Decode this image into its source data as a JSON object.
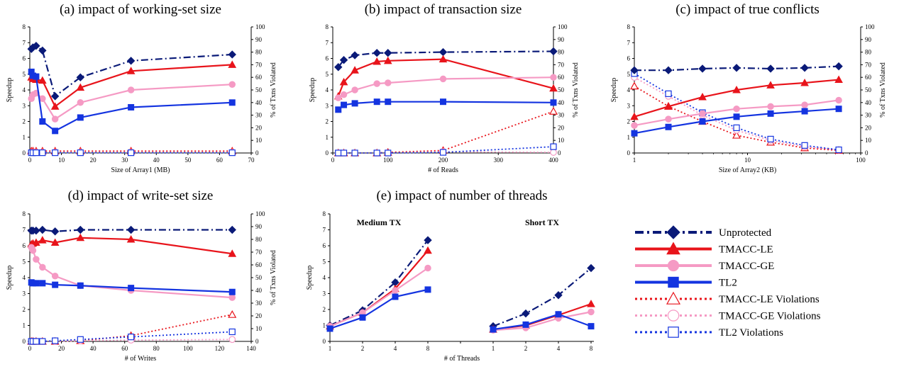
{
  "series_styles": {
    "Unprotected": {
      "color": "#0a1a78",
      "dash": "10,4,2,4",
      "marker": "diamond",
      "fill": true
    },
    "TMACC-LE": {
      "color": "#e8141b",
      "dash": "",
      "marker": "triangle",
      "fill": true
    },
    "TMACC-GE": {
      "color": "#f59ac4",
      "dash": "",
      "marker": "circle",
      "fill": true
    },
    "TL2": {
      "color": "#1434e0",
      "dash": "",
      "marker": "square",
      "fill": true
    },
    "TMACC-LE Violations": {
      "color": "#e8141b",
      "dash": "2,3",
      "marker": "triangle",
      "fill": false
    },
    "TMACC-GE Violations": {
      "color": "#f59ac4",
      "dash": "2,3",
      "marker": "circle",
      "fill": false
    },
    "TL2  Violations": {
      "color": "#1434e0",
      "dash": "2,3",
      "marker": "square",
      "fill": false
    }
  },
  "legend": {
    "placement": "bottom-right",
    "entries": [
      "Unprotected",
      "TMACC-LE",
      "TMACC-GE",
      "TL2",
      "TMACC-LE Violations",
      "TMACC-GE Violations",
      "TL2  Violations"
    ]
  },
  "chart_data": [
    {
      "type": "line",
      "title": "(a) impact of working-set size",
      "xlabel": "Size of Array1 (MB)",
      "ylabel": "Speedup",
      "y2label": "% of Txns Violated",
      "xlim": [
        0,
        70
      ],
      "ylim": [
        0,
        8
      ],
      "y2lim": [
        0,
        100
      ],
      "xticks": [
        "0",
        "10",
        "20",
        "30",
        "40",
        "50",
        "60",
        "70"
      ],
      "xtick_values": [
        0,
        10,
        20,
        30,
        40,
        50,
        60,
        70
      ],
      "yticks": [
        "0",
        "1",
        "2",
        "3",
        "4",
        "5",
        "6",
        "7",
        "8"
      ],
      "y2ticks": [
        "0",
        "10",
        "20",
        "30",
        "40",
        "50",
        "60",
        "70",
        "80",
        "90",
        "100"
      ],
      "series": [
        {
          "name": "Unprotected",
          "axis": "left",
          "x": [
            0.5,
            1,
            2,
            4,
            8,
            16,
            32,
            64
          ],
          "values": [
            6.6,
            6.7,
            6.8,
            6.5,
            3.6,
            4.8,
            5.85,
            6.25
          ]
        },
        {
          "name": "TMACC-LE",
          "axis": "left",
          "x": [
            0.5,
            1,
            2,
            4,
            8,
            16,
            32,
            64
          ],
          "values": [
            4.8,
            4.7,
            4.65,
            4.6,
            2.95,
            4.15,
            5.2,
            5.6
          ]
        },
        {
          "name": "TMACC-GE",
          "axis": "left",
          "x": [
            0.5,
            1,
            2,
            4,
            8,
            16,
            32,
            64
          ],
          "values": [
            3.45,
            3.7,
            3.8,
            3.45,
            2.15,
            3.2,
            4.0,
            4.35
          ]
        },
        {
          "name": "TL2",
          "axis": "left",
          "x": [
            0.5,
            1,
            2,
            4,
            8,
            16,
            32,
            64
          ],
          "values": [
            5.15,
            4.9,
            4.85,
            2.0,
            1.4,
            2.25,
            2.9,
            3.2
          ]
        },
        {
          "name": "TMACC-LE Violations",
          "axis": "right",
          "x": [
            0.5,
            1,
            2,
            4,
            8,
            16,
            32,
            64
          ],
          "values": [
            1.5,
            1.5,
            1.5,
            1.5,
            1.5,
            1.5,
            1.5,
            1.5
          ]
        },
        {
          "name": "TMACC-GE Violations",
          "axis": "right",
          "x": [
            0.5,
            1,
            2,
            4,
            8,
            16,
            32,
            64
          ],
          "values": [
            0.5,
            0.5,
            0.5,
            0.5,
            0.5,
            0.5,
            0.5,
            0.5
          ]
        },
        {
          "name": "TL2  Violations",
          "axis": "right",
          "x": [
            0.5,
            1,
            2,
            4,
            8,
            16,
            32,
            64
          ],
          "values": [
            0.2,
            0.2,
            0.2,
            0.2,
            0.2,
            0.2,
            0.2,
            0.2
          ]
        }
      ]
    },
    {
      "type": "line",
      "title": "(b) impact of transaction size",
      "xlabel": "# of Reads",
      "ylabel": "Speedup",
      "y2label": "% of Txns Violated",
      "xlim": [
        0,
        400
      ],
      "ylim": [
        0,
        8
      ],
      "y2lim": [
        0,
        100
      ],
      "xticks": [
        "0",
        "100",
        "200",
        "300",
        "400"
      ],
      "xtick_values": [
        0,
        100,
        200,
        300,
        400
      ],
      "yticks": [
        "0",
        "1",
        "2",
        "3",
        "4",
        "5",
        "6",
        "7",
        "8"
      ],
      "y2ticks": [
        "0",
        "10",
        "20",
        "30",
        "40",
        "50",
        "60",
        "70",
        "80",
        "90",
        "100"
      ],
      "series": [
        {
          "name": "Unprotected",
          "axis": "left",
          "x": [
            10,
            20,
            40,
            80,
            100,
            200,
            400
          ],
          "values": [
            5.45,
            5.9,
            6.2,
            6.35,
            6.35,
            6.4,
            6.45
          ]
        },
        {
          "name": "TMACC-LE",
          "axis": "left",
          "x": [
            10,
            20,
            40,
            80,
            100,
            200,
            400
          ],
          "values": [
            3.6,
            4.5,
            5.25,
            5.8,
            5.85,
            5.95,
            4.1
          ]
        },
        {
          "name": "TMACC-GE",
          "axis": "left",
          "x": [
            10,
            20,
            40,
            80,
            100,
            200,
            400
          ],
          "values": [
            3.5,
            3.7,
            4.0,
            4.4,
            4.45,
            4.7,
            4.8
          ]
        },
        {
          "name": "TL2",
          "axis": "left",
          "x": [
            10,
            20,
            40,
            80,
            100,
            200,
            400
          ],
          "values": [
            2.75,
            3.05,
            3.15,
            3.25,
            3.25,
            3.25,
            3.2
          ]
        },
        {
          "name": "TMACC-LE Violations",
          "axis": "right",
          "x": [
            10,
            20,
            40,
            80,
            100,
            200,
            400
          ],
          "values": [
            0,
            0,
            0,
            0,
            0.5,
            2,
            33
          ]
        },
        {
          "name": "TMACC-GE Violations",
          "axis": "right",
          "x": [
            10,
            20,
            40,
            80,
            100,
            200,
            400
          ],
          "values": [
            0,
            0,
            0,
            0,
            0,
            1,
            0.5
          ]
        },
        {
          "name": "TL2  Violations",
          "axis": "right",
          "x": [
            10,
            20,
            40,
            80,
            100,
            200,
            400
          ],
          "values": [
            0,
            0,
            0,
            0,
            0,
            0.5,
            5
          ]
        }
      ]
    },
    {
      "type": "line",
      "title": "(c) impact of true conflicts",
      "xlabel": "Size of Array2 (KB)",
      "ylabel": "Speedup",
      "y2label": "% of Txns Violated",
      "xscale": "log",
      "xlim": [
        1,
        100
      ],
      "ylim": [
        0,
        8
      ],
      "y2lim": [
        0,
        100
      ],
      "xticks": [
        "1",
        "10",
        "100"
      ],
      "xtick_values": [
        1,
        10,
        100
      ],
      "yticks": [
        "0",
        "1",
        "2",
        "3",
        "4",
        "5",
        "6",
        "7",
        "8"
      ],
      "y2ticks": [
        "0",
        "10",
        "20",
        "30",
        "40",
        "50",
        "60",
        "70",
        "80",
        "90",
        "100"
      ],
      "series": [
        {
          "name": "Unprotected",
          "axis": "left",
          "x": [
            1,
            2,
            4,
            8,
            16,
            32,
            64
          ],
          "values": [
            5.25,
            5.25,
            5.35,
            5.4,
            5.35,
            5.4,
            5.5
          ]
        },
        {
          "name": "TMACC-LE",
          "axis": "left",
          "x": [
            1,
            2,
            4,
            8,
            16,
            32,
            64
          ],
          "values": [
            2.3,
            2.95,
            3.55,
            4.0,
            4.3,
            4.45,
            4.65
          ]
        },
        {
          "name": "TMACC-GE",
          "axis": "left",
          "x": [
            1,
            2,
            4,
            8,
            16,
            32,
            64
          ],
          "values": [
            1.75,
            2.15,
            2.5,
            2.8,
            2.95,
            3.05,
            3.35
          ]
        },
        {
          "name": "TL2",
          "axis": "left",
          "x": [
            1,
            2,
            4,
            8,
            16,
            32,
            64
          ],
          "values": [
            1.25,
            1.65,
            2.0,
            2.3,
            2.5,
            2.65,
            2.8
          ]
        },
        {
          "name": "TMACC-LE Violations",
          "axis": "right",
          "x": [
            1,
            2,
            4,
            8,
            16,
            32,
            64
          ],
          "values": [
            53,
            37,
            25,
            14,
            8.5,
            4,
            2
          ]
        },
        {
          "name": "TMACC-GE Violations",
          "axis": "right",
          "x": [
            1,
            2,
            4,
            8,
            16,
            32,
            64
          ],
          "values": [
            60,
            45,
            30,
            18,
            10,
            5,
            2.5
          ]
        },
        {
          "name": "TL2  Violations",
          "axis": "right",
          "x": [
            1,
            2,
            4,
            8,
            16,
            32,
            64
          ],
          "values": [
            63,
            47,
            32,
            20,
            11,
            6,
            2.5
          ]
        }
      ]
    },
    {
      "type": "line",
      "title": "(d) impact of write-set size",
      "xlabel": "# of Writes",
      "ylabel": "Speedup",
      "y2label": "% of Txns Violated",
      "xlim": [
        0,
        140
      ],
      "ylim": [
        0,
        8
      ],
      "y2lim": [
        0,
        100
      ],
      "xticks": [
        "0",
        "20",
        "40",
        "60",
        "80",
        "100",
        "120",
        "140"
      ],
      "xtick_values": [
        0,
        20,
        40,
        60,
        80,
        100,
        120,
        140
      ],
      "yticks": [
        "0",
        "1",
        "2",
        "3",
        "4",
        "5",
        "6",
        "7",
        "8"
      ],
      "y2ticks": [
        "0",
        "10",
        "20",
        "30",
        "40",
        "50",
        "60",
        "70",
        "80",
        "90",
        "100"
      ],
      "series": [
        {
          "name": "Unprotected",
          "axis": "left",
          "x": [
            1,
            2,
            4,
            8,
            16,
            32,
            64,
            128
          ],
          "values": [
            6.95,
            6.95,
            6.95,
            7.0,
            6.9,
            7.0,
            7.0,
            7.0
          ]
        },
        {
          "name": "TMACC-LE",
          "axis": "left",
          "x": [
            1,
            2,
            4,
            8,
            16,
            32,
            64,
            128
          ],
          "values": [
            6.1,
            6.15,
            6.2,
            6.35,
            6.2,
            6.5,
            6.4,
            5.5
          ]
        },
        {
          "name": "TMACC-GE",
          "axis": "left",
          "x": [
            1,
            2,
            4,
            8,
            16,
            32,
            64,
            128
          ],
          "values": [
            5.9,
            5.7,
            5.15,
            4.65,
            4.1,
            3.5,
            3.2,
            2.75
          ]
        },
        {
          "name": "TL2",
          "axis": "left",
          "x": [
            1,
            2,
            4,
            8,
            16,
            32,
            64,
            128
          ],
          "values": [
            3.7,
            3.65,
            3.65,
            3.65,
            3.55,
            3.5,
            3.35,
            3.1
          ]
        },
        {
          "name": "TMACC-LE Violations",
          "axis": "right",
          "x": [
            1,
            2,
            4,
            8,
            16,
            32,
            64,
            128
          ],
          "values": [
            0,
            0,
            0,
            0,
            0,
            0.5,
            4.5,
            21
          ]
        },
        {
          "name": "TMACC-GE Violations",
          "axis": "right",
          "x": [
            1,
            2,
            4,
            8,
            16,
            32,
            64,
            128
          ],
          "values": [
            0,
            0,
            0,
            0,
            0,
            0.5,
            1,
            1.5
          ]
        },
        {
          "name": "TL2  Violations",
          "axis": "right",
          "x": [
            1,
            2,
            4,
            8,
            16,
            32,
            64,
            128
          ],
          "values": [
            0,
            0,
            0,
            0,
            0.5,
            1.5,
            3.5,
            7.5
          ]
        }
      ]
    },
    {
      "type": "line",
      "title": "(e) impact of number of threads",
      "xlabel": "# of Threads",
      "ylabel": "Speedup",
      "ylim": [
        0,
        8
      ],
      "yticks": [
        "0",
        "1",
        "2",
        "3",
        "4",
        "5",
        "6",
        "7",
        "8"
      ],
      "groups": [
        {
          "label": "Medium TX",
          "categories": [
            "1",
            "2",
            "4",
            "8"
          ],
          "series": [
            {
              "name": "Unprotected",
              "values": [
                1.0,
                1.95,
                3.7,
                6.35
              ]
            },
            {
              "name": "TMACC-LE",
              "values": [
                0.95,
                1.8,
                3.3,
                5.7
              ]
            },
            {
              "name": "TMACC-GE",
              "values": [
                0.95,
                1.8,
                3.2,
                4.6
              ]
            },
            {
              "name": "TL2",
              "values": [
                0.8,
                1.5,
                2.8,
                3.25
              ]
            }
          ]
        },
        {
          "label": "Short TX",
          "categories": [
            "1",
            "2",
            "4",
            "8"
          ],
          "series": [
            {
              "name": "Unprotected",
              "values": [
                0.95,
                1.75,
                2.9,
                4.6
              ]
            },
            {
              "name": "TMACC-LE",
              "values": [
                0.75,
                1.0,
                1.65,
                2.35
              ]
            },
            {
              "name": "TMACC-GE",
              "values": [
                0.7,
                0.85,
                1.45,
                1.85
              ]
            },
            {
              "name": "TL2",
              "values": [
                0.75,
                1.05,
                1.7,
                0.95
              ]
            }
          ]
        }
      ]
    }
  ]
}
